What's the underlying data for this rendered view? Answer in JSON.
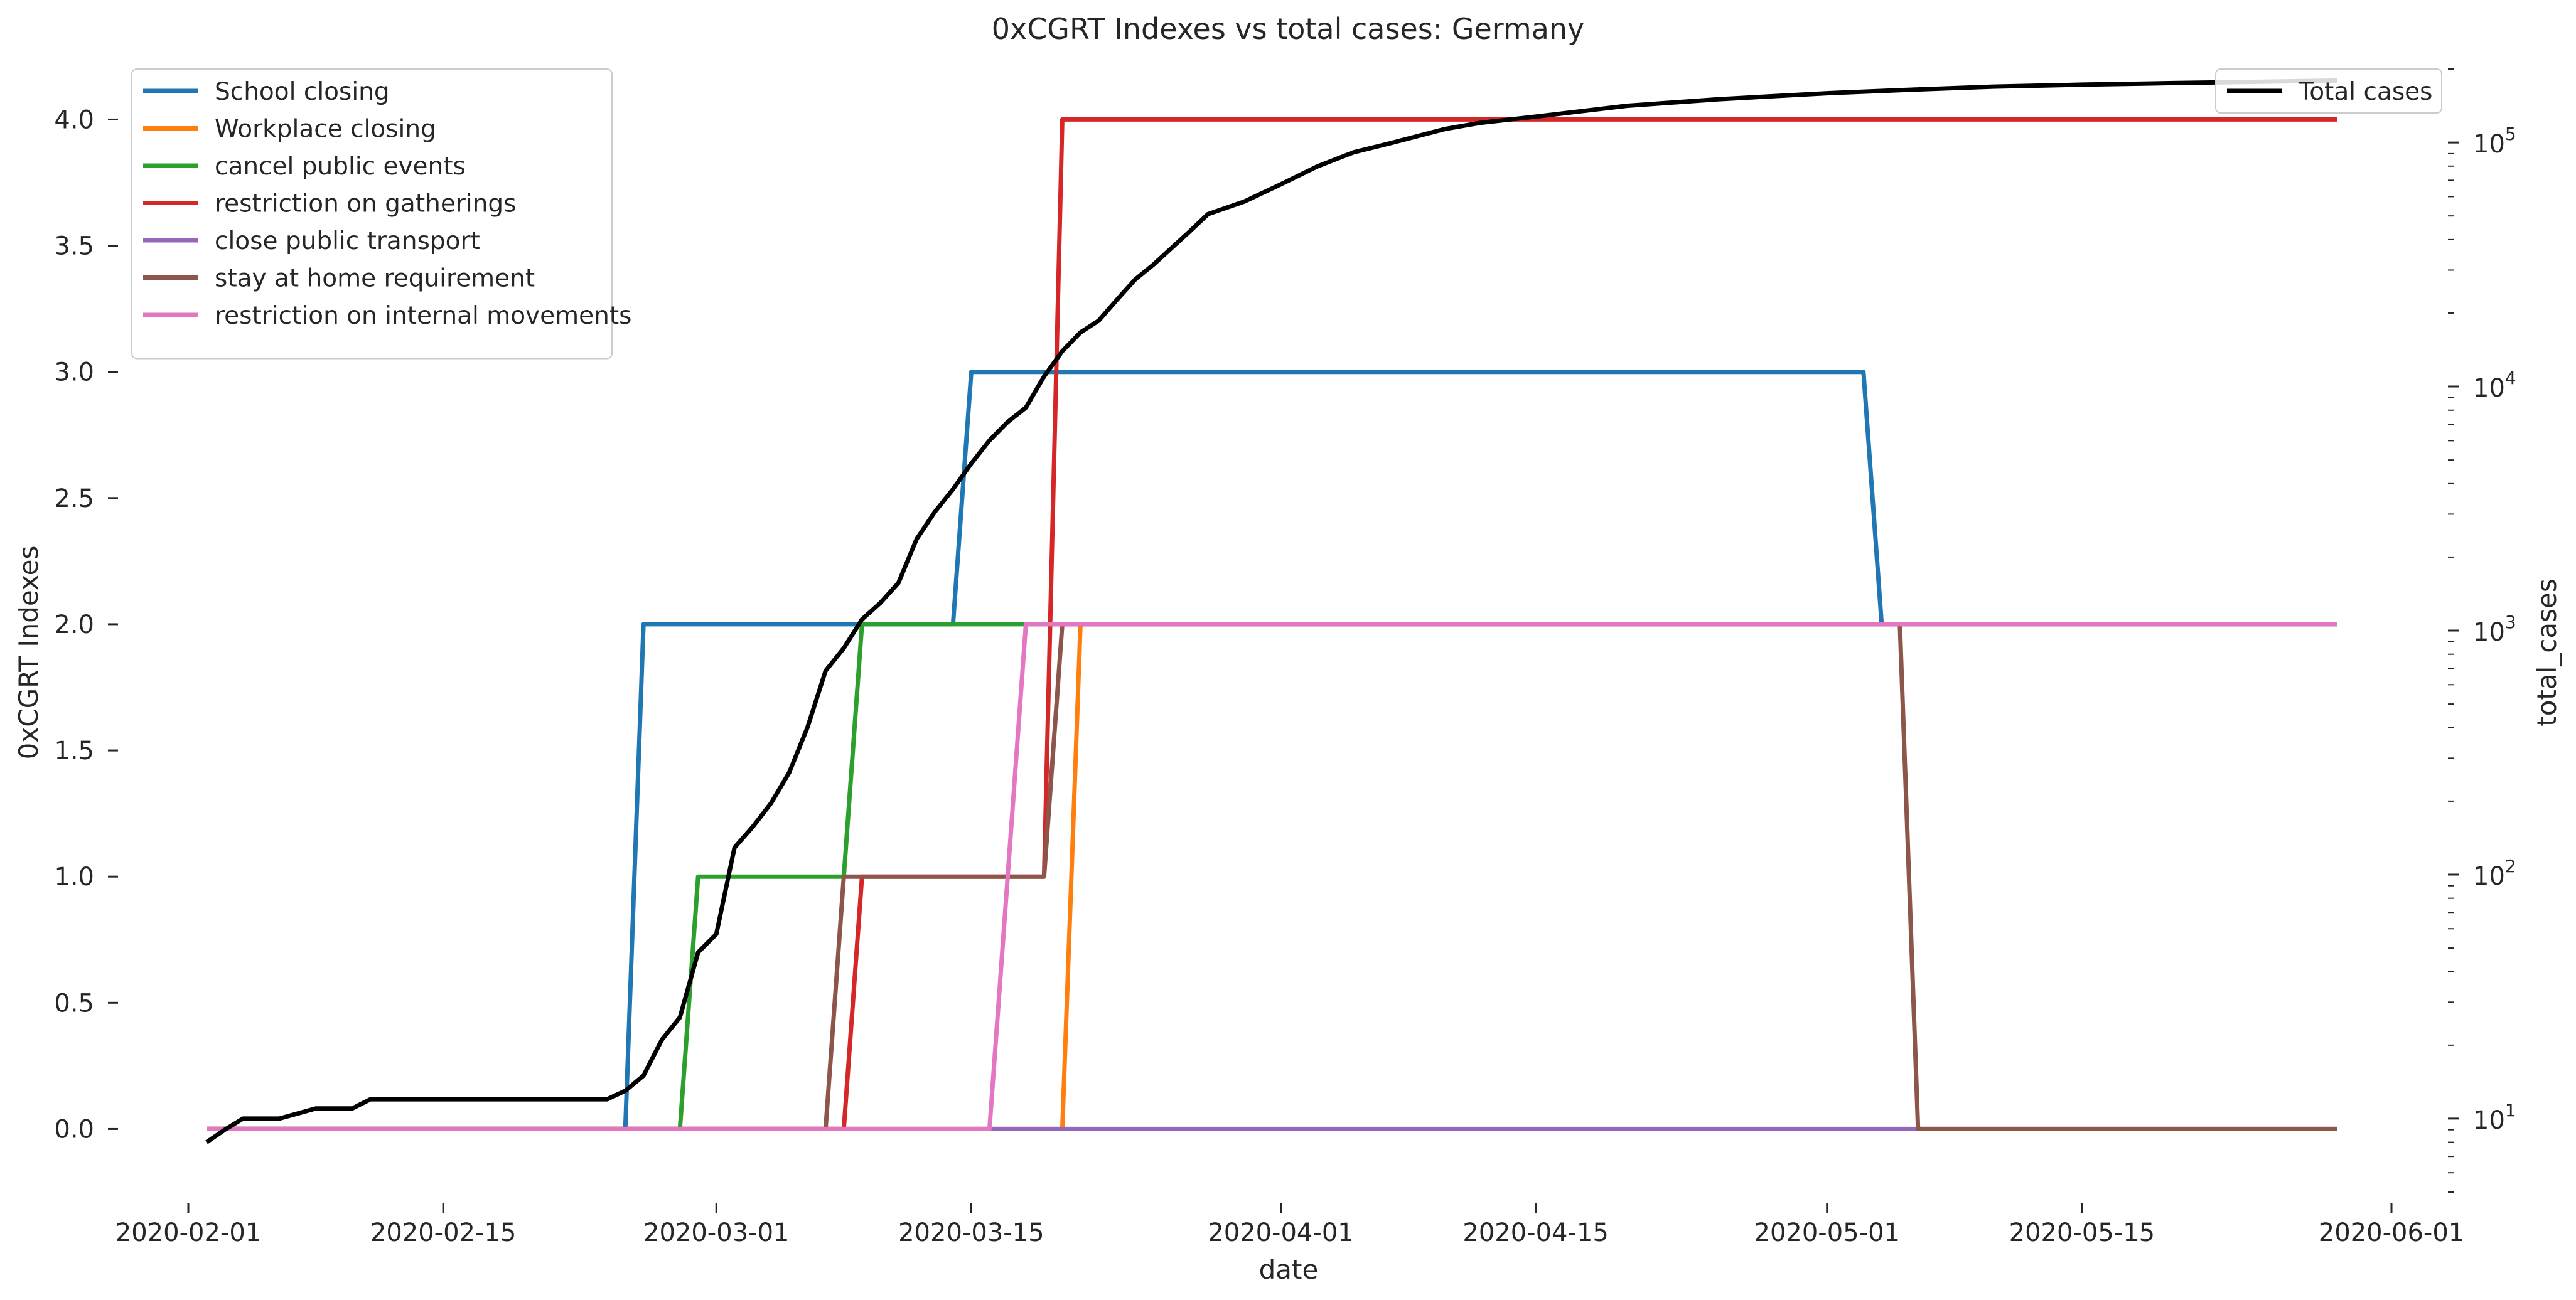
{
  "chart_data": {
    "type": "line",
    "title": "0xCGRT Indexes vs total cases:  Germany",
    "xlabel": "date",
    "ylabel": "0xCGRT Indexes",
    "y2label": "total_cases",
    "x_range": [
      "2020-02-01",
      "2020-06-01"
    ],
    "x_ticks": [
      "2020-02-01",
      "2020-02-15",
      "2020-03-01",
      "2020-03-15",
      "2020-04-01",
      "2020-04-15",
      "2020-05-01",
      "2020-05-15",
      "2020-06-01"
    ],
    "ylim": [
      -0.25,
      4.2
    ],
    "y_ticks": [
      "0.0",
      "0.5",
      "1.0",
      "1.5",
      "2.0",
      "2.5",
      "3.0",
      "3.5",
      "4.0"
    ],
    "y2_scale": "log",
    "y2lim": [
      5,
      200000
    ],
    "y2_ticks": [
      {
        "base": "10",
        "exp": "1",
        "value": 10
      },
      {
        "base": "10",
        "exp": "2",
        "value": 100
      },
      {
        "base": "10",
        "exp": "3",
        "value": 1000
      },
      {
        "base": "10",
        "exp": "4",
        "value": 10000
      },
      {
        "base": "10",
        "exp": "5",
        "value": 100000
      }
    ],
    "grid": false,
    "legend_left": "top-left",
    "legend_right": "top-right",
    "series": [
      {
        "name": "School closing",
        "color": "#1f77b4",
        "axis": "left",
        "points": [
          [
            "2020-02-02",
            0
          ],
          [
            "2020-02-25",
            0
          ],
          [
            "2020-02-26",
            2
          ],
          [
            "2020-03-14",
            2
          ],
          [
            "2020-03-15",
            3
          ],
          [
            "2020-05-03",
            3
          ],
          [
            "2020-05-04",
            2
          ],
          [
            "2020-05-29",
            2
          ]
        ]
      },
      {
        "name": "Workplace closing",
        "color": "#ff7f0e",
        "axis": "left",
        "points": [
          [
            "2020-02-02",
            0
          ],
          [
            "2020-03-20",
            0
          ],
          [
            "2020-03-21",
            2
          ],
          [
            "2020-05-29",
            2
          ]
        ]
      },
      {
        "name": "cancel public events",
        "color": "#2ca02c",
        "axis": "left",
        "points": [
          [
            "2020-02-02",
            0
          ],
          [
            "2020-02-28",
            0
          ],
          [
            "2020-02-29",
            1
          ],
          [
            "2020-03-08",
            1
          ],
          [
            "2020-03-09",
            2
          ],
          [
            "2020-05-29",
            2
          ]
        ]
      },
      {
        "name": "restriction on gatherings",
        "color": "#d62728",
        "axis": "left",
        "points": [
          [
            "2020-02-02",
            0
          ],
          [
            "2020-03-08",
            0
          ],
          [
            "2020-03-09",
            1
          ],
          [
            "2020-03-19",
            1
          ],
          [
            "2020-03-20",
            4
          ],
          [
            "2020-05-29",
            4
          ]
        ]
      },
      {
        "name": "close public transport",
        "color": "#9467bd",
        "axis": "left",
        "points": [
          [
            "2020-02-02",
            0
          ],
          [
            "2020-05-29",
            0
          ]
        ]
      },
      {
        "name": "stay at home requirement",
        "color": "#8c564b",
        "axis": "left",
        "points": [
          [
            "2020-02-02",
            0
          ],
          [
            "2020-03-07",
            0
          ],
          [
            "2020-03-08",
            1
          ],
          [
            "2020-03-19",
            1
          ],
          [
            "2020-03-20",
            2
          ],
          [
            "2020-05-05",
            2
          ],
          [
            "2020-05-06",
            0
          ],
          [
            "2020-05-29",
            0
          ]
        ]
      },
      {
        "name": "restriction on internal movements",
        "color": "#e377c2",
        "axis": "left",
        "points": [
          [
            "2020-02-02",
            0
          ],
          [
            "2020-03-16",
            0
          ],
          [
            "2020-03-18",
            2
          ],
          [
            "2020-05-29",
            2
          ]
        ]
      },
      {
        "name": "Total cases",
        "color": "#000000",
        "axis": "right",
        "points": [
          [
            "2020-02-02",
            8
          ],
          [
            "2020-02-03",
            9
          ],
          [
            "2020-02-04",
            10
          ],
          [
            "2020-02-06",
            10
          ],
          [
            "2020-02-08",
            11
          ],
          [
            "2020-02-10",
            11
          ],
          [
            "2020-02-11",
            12
          ],
          [
            "2020-02-24",
            12
          ],
          [
            "2020-02-25",
            13
          ],
          [
            "2020-02-26",
            15
          ],
          [
            "2020-02-27",
            21
          ],
          [
            "2020-02-28",
            26
          ],
          [
            "2020-02-29",
            48
          ],
          [
            "2020-03-01",
            57
          ],
          [
            "2020-03-02",
            129
          ],
          [
            "2020-03-03",
            157
          ],
          [
            "2020-03-04",
            196
          ],
          [
            "2020-03-05",
            262
          ],
          [
            "2020-03-06",
            400
          ],
          [
            "2020-03-07",
            684
          ],
          [
            "2020-03-08",
            847
          ],
          [
            "2020-03-09",
            1112
          ],
          [
            "2020-03-10",
            1296
          ],
          [
            "2020-03-11",
            1567
          ],
          [
            "2020-03-12",
            2369
          ],
          [
            "2020-03-13",
            3062
          ],
          [
            "2020-03-14",
            3795
          ],
          [
            "2020-03-15",
            4838
          ],
          [
            "2020-03-16",
            6012
          ],
          [
            "2020-03-17",
            7156
          ],
          [
            "2020-03-18",
            8198
          ],
          [
            "2020-03-19",
            10999
          ],
          [
            "2020-03-20",
            13957
          ],
          [
            "2020-03-21",
            16662
          ],
          [
            "2020-03-22",
            18610
          ],
          [
            "2020-03-23",
            22672
          ],
          [
            "2020-03-24",
            27436
          ],
          [
            "2020-03-25",
            31554
          ],
          [
            "2020-03-27",
            43211
          ],
          [
            "2020-03-28",
            50871
          ],
          [
            "2020-03-30",
            57298
          ],
          [
            "2020-04-01",
            67366
          ],
          [
            "2020-04-03",
            79696
          ],
          [
            "2020-04-05",
            91159
          ],
          [
            "2020-04-07",
            99225
          ],
          [
            "2020-04-10",
            113525
          ],
          [
            "2020-04-12",
            120479
          ],
          [
            "2020-04-15",
            127584
          ],
          [
            "2020-04-20",
            141397
          ],
          [
            "2020-04-25",
            150383
          ],
          [
            "2020-05-01",
            159119
          ],
          [
            "2020-05-05",
            163860
          ],
          [
            "2020-05-10",
            169218
          ],
          [
            "2020-05-15",
            172576
          ],
          [
            "2020-05-20",
            175210
          ],
          [
            "2020-05-29",
            179364
          ]
        ]
      }
    ]
  }
}
